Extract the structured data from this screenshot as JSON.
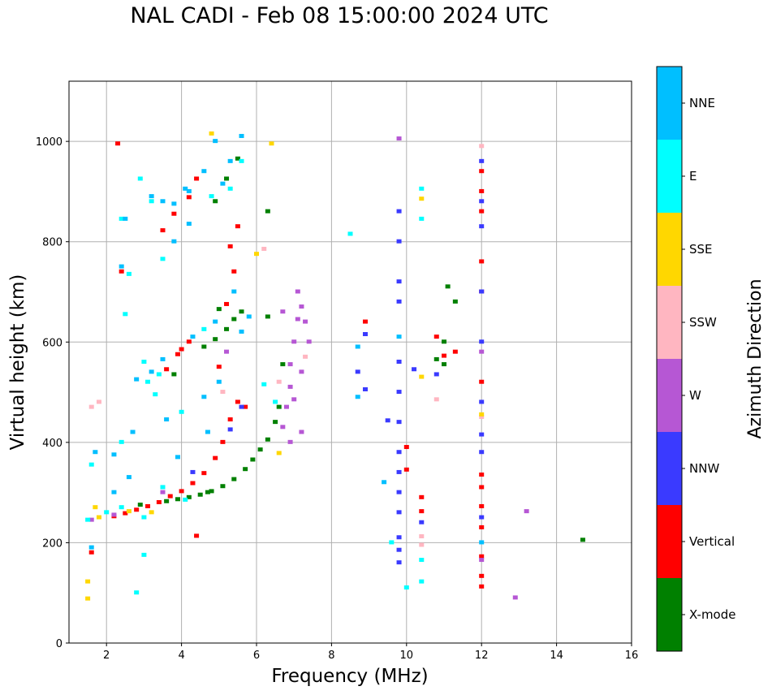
{
  "chart_data": {
    "type": "scatter",
    "title": "NAL CADI - Feb 08 15:00:00 2024 UTC",
    "xlabel": "Frequency (MHz)",
    "ylabel": "Virtual height (km)",
    "xlim": [
      1,
      16
    ],
    "ylim": [
      0,
      1120
    ],
    "xticks": [
      2,
      4,
      6,
      8,
      10,
      12,
      14,
      16
    ],
    "yticks": [
      0,
      200,
      400,
      600,
      800,
      1000
    ],
    "grid": true,
    "colorbar": {
      "label": "Azimuth Direction",
      "position": "right",
      "categories": [
        "X-mode",
        "Vertical",
        "NNW",
        "W",
        "SSW",
        "SSE",
        "E",
        "NNE"
      ],
      "colors": [
        "#008000",
        "#ff0000",
        "#3a3aff",
        "#b657d4",
        "#ffb6c1",
        "#ffd700",
        "#00ffff",
        "#00bfff"
      ]
    },
    "series": [
      {
        "name": "X-mode",
        "points": [
          [
            3.6,
            282
          ],
          [
            3.9,
            286
          ],
          [
            4.2,
            290
          ],
          [
            4.5,
            295
          ],
          [
            4.8,
            302
          ],
          [
            5.1,
            312
          ],
          [
            5.4,
            326
          ],
          [
            5.7,
            346
          ],
          [
            5.9,
            365
          ],
          [
            6.1,
            385
          ],
          [
            6.3,
            405
          ],
          [
            6.5,
            440
          ],
          [
            6.6,
            470
          ],
          [
            6.7,
            555
          ],
          [
            6.3,
            650
          ],
          [
            4.6,
            590
          ],
          [
            4.9,
            605
          ],
          [
            5.2,
            625
          ],
          [
            5.4,
            645
          ],
          [
            5.6,
            660
          ],
          [
            4.9,
            880
          ],
          [
            5.2,
            925
          ],
          [
            5.5,
            965
          ],
          [
            6.3,
            860
          ],
          [
            10.8,
            565
          ],
          [
            11.0,
            555
          ],
          [
            11.0,
            600
          ],
          [
            11.3,
            680
          ],
          [
            11.1,
            710
          ],
          [
            14.7,
            205
          ],
          [
            3.8,
            535
          ],
          [
            5.0,
            665
          ],
          [
            4.7,
            300
          ],
          [
            2.9,
            275
          ]
        ]
      },
      {
        "name": "Vertical",
        "points": [
          [
            2.2,
            252
          ],
          [
            2.5,
            258
          ],
          [
            2.8,
            265
          ],
          [
            3.1,
            272
          ],
          [
            3.4,
            280
          ],
          [
            3.7,
            292
          ],
          [
            4.0,
            302
          ],
          [
            4.3,
            318
          ],
          [
            4.6,
            338
          ],
          [
            4.9,
            368
          ],
          [
            5.1,
            400
          ],
          [
            5.3,
            445
          ],
          [
            5.5,
            480
          ],
          [
            4.0,
            585
          ],
          [
            4.2,
            600
          ],
          [
            5.2,
            675
          ],
          [
            5.4,
            740
          ],
          [
            5.3,
            790
          ],
          [
            5.5,
            830
          ],
          [
            3.5,
            822
          ],
          [
            3.8,
            855
          ],
          [
            4.2,
            888
          ],
          [
            4.4,
            925
          ],
          [
            3.6,
            545
          ],
          [
            3.9,
            575
          ],
          [
            5.0,
            550
          ],
          [
            5.7,
            470
          ],
          [
            8.9,
            640
          ],
          [
            10.0,
            390
          ],
          [
            10.0,
            345
          ],
          [
            10.4,
            262
          ],
          [
            10.4,
            290
          ],
          [
            10.8,
            610
          ],
          [
            11.0,
            572
          ],
          [
            11.3,
            580
          ],
          [
            12.0,
            700
          ],
          [
            12.0,
            112
          ],
          [
            12.0,
            133
          ],
          [
            12.0,
            172
          ],
          [
            12.0,
            230
          ],
          [
            12.0,
            272
          ],
          [
            12.0,
            310
          ],
          [
            12.0,
            335
          ],
          [
            12.0,
            760
          ],
          [
            12.0,
            860
          ],
          [
            12.0,
            900
          ],
          [
            12.0,
            940
          ],
          [
            12.0,
            520
          ],
          [
            2.4,
            740
          ],
          [
            2.3,
            995
          ],
          [
            1.6,
            180
          ],
          [
            4.4,
            213
          ]
        ]
      },
      {
        "name": "NNW",
        "points": [
          [
            8.7,
            540
          ],
          [
            8.9,
            505
          ],
          [
            8.9,
            615
          ],
          [
            9.8,
            560
          ],
          [
            9.8,
            500
          ],
          [
            9.8,
            440
          ],
          [
            9.8,
            380
          ],
          [
            9.8,
            340
          ],
          [
            9.8,
            300
          ],
          [
            9.8,
            260
          ],
          [
            9.8,
            210
          ],
          [
            9.8,
            185
          ],
          [
            9.8,
            160
          ],
          [
            9.8,
            680
          ],
          [
            9.8,
            720
          ],
          [
            9.8,
            800
          ],
          [
            9.8,
            860
          ],
          [
            10.8,
            535
          ],
          [
            12.0,
            250
          ],
          [
            12.0,
            380
          ],
          [
            12.0,
            415
          ],
          [
            12.0,
            480
          ],
          [
            12.0,
            600
          ],
          [
            12.0,
            700
          ],
          [
            12.0,
            830
          ],
          [
            12.0,
            880
          ],
          [
            12.0,
            960
          ],
          [
            9.5,
            443
          ],
          [
            3.5,
            310
          ],
          [
            4.3,
            340
          ],
          [
            5.3,
            425
          ],
          [
            5.6,
            470
          ],
          [
            10.4,
            240
          ],
          [
            10.2,
            545
          ]
        ]
      },
      {
        "name": "W",
        "points": [
          [
            6.7,
            430
          ],
          [
            6.8,
            470
          ],
          [
            6.9,
            510
          ],
          [
            6.9,
            555
          ],
          [
            7.0,
            600
          ],
          [
            7.1,
            645
          ],
          [
            7.2,
            670
          ],
          [
            7.3,
            640
          ],
          [
            6.7,
            660
          ],
          [
            7.2,
            540
          ],
          [
            7.4,
            600
          ],
          [
            7.2,
            420
          ],
          [
            6.9,
            400
          ],
          [
            7.0,
            485
          ],
          [
            13.2,
            262
          ],
          [
            12.9,
            90
          ],
          [
            3.5,
            300
          ],
          [
            1.6,
            245
          ],
          [
            2.2,
            255
          ],
          [
            5.2,
            580
          ],
          [
            12.0,
            580
          ],
          [
            12.0,
            165
          ],
          [
            9.8,
            1005
          ],
          [
            7.1,
            700
          ]
        ]
      },
      {
        "name": "SSW",
        "points": [
          [
            1.6,
            470
          ],
          [
            1.8,
            480
          ],
          [
            10.8,
            485
          ],
          [
            10.4,
            212
          ],
          [
            6.2,
            785
          ],
          [
            6.6,
            520
          ],
          [
            7.3,
            570
          ],
          [
            5.1,
            500
          ],
          [
            12.0,
            990
          ],
          [
            12.0,
            450
          ],
          [
            10.4,
            195
          ]
        ]
      },
      {
        "name": "SSE",
        "points": [
          [
            6.6,
            378
          ],
          [
            10.4,
            530
          ],
          [
            10.4,
            885
          ],
          [
            12.0,
            455
          ],
          [
            1.5,
            122
          ],
          [
            1.5,
            88
          ],
          [
            1.7,
            270
          ],
          [
            2.6,
            262
          ],
          [
            3.2,
            260
          ],
          [
            6.0,
            775
          ],
          [
            6.4,
            995
          ],
          [
            4.8,
            1015
          ],
          [
            1.8,
            250
          ]
        ]
      },
      {
        "name": "E",
        "points": [
          [
            8.5,
            815
          ],
          [
            10.4,
            905
          ],
          [
            10.4,
            845
          ],
          [
            9.6,
            200
          ],
          [
            10.0,
            110
          ],
          [
            2.4,
            400
          ],
          [
            2.5,
            655
          ],
          [
            1.6,
            355
          ],
          [
            1.5,
            245
          ],
          [
            2.0,
            260
          ],
          [
            2.4,
            270
          ],
          [
            3.0,
            250
          ],
          [
            3.1,
            520
          ],
          [
            3.3,
            495
          ],
          [
            3.4,
            535
          ],
          [
            4.0,
            460
          ],
          [
            4.8,
            890
          ],
          [
            5.3,
            905
          ],
          [
            5.6,
            960
          ],
          [
            3.5,
            765
          ],
          [
            2.6,
            735
          ],
          [
            2.4,
            845
          ],
          [
            2.9,
            925
          ],
          [
            3.2,
            880
          ],
          [
            3.0,
            560
          ],
          [
            4.6,
            625
          ],
          [
            6.5,
            480
          ],
          [
            6.2,
            515
          ],
          [
            4.1,
            285
          ],
          [
            3.5,
            310
          ],
          [
            2.8,
            100
          ],
          [
            3.0,
            175
          ],
          [
            10.4,
            165
          ],
          [
            10.4,
            122
          ]
        ]
      },
      {
        "name": "NNE",
        "points": [
          [
            2.4,
            750
          ],
          [
            2.5,
            845
          ],
          [
            3.2,
            890
          ],
          [
            3.5,
            880
          ],
          [
            3.8,
            875
          ],
          [
            4.2,
            900
          ],
          [
            4.6,
            940
          ],
          [
            4.9,
            1000
          ],
          [
            5.3,
            960
          ],
          [
            5.6,
            1010
          ],
          [
            3.8,
            800
          ],
          [
            4.2,
            835
          ],
          [
            5.1,
            915
          ],
          [
            2.8,
            525
          ],
          [
            3.2,
            540
          ],
          [
            3.5,
            565
          ],
          [
            4.3,
            610
          ],
          [
            4.9,
            640
          ],
          [
            5.4,
            700
          ],
          [
            5.6,
            620
          ],
          [
            2.2,
            375
          ],
          [
            2.7,
            420
          ],
          [
            3.6,
            445
          ],
          [
            4.6,
            490
          ],
          [
            5.0,
            520
          ],
          [
            8.7,
            490
          ],
          [
            8.7,
            590
          ],
          [
            9.4,
            320
          ],
          [
            9.8,
            610
          ],
          [
            12.0,
            200
          ],
          [
            1.7,
            380
          ],
          [
            1.6,
            190
          ],
          [
            2.2,
            300
          ],
          [
            2.6,
            330
          ],
          [
            3.9,
            370
          ],
          [
            4.7,
            420
          ],
          [
            5.8,
            650
          ],
          [
            4.1,
            905
          ]
        ]
      }
    ]
  }
}
